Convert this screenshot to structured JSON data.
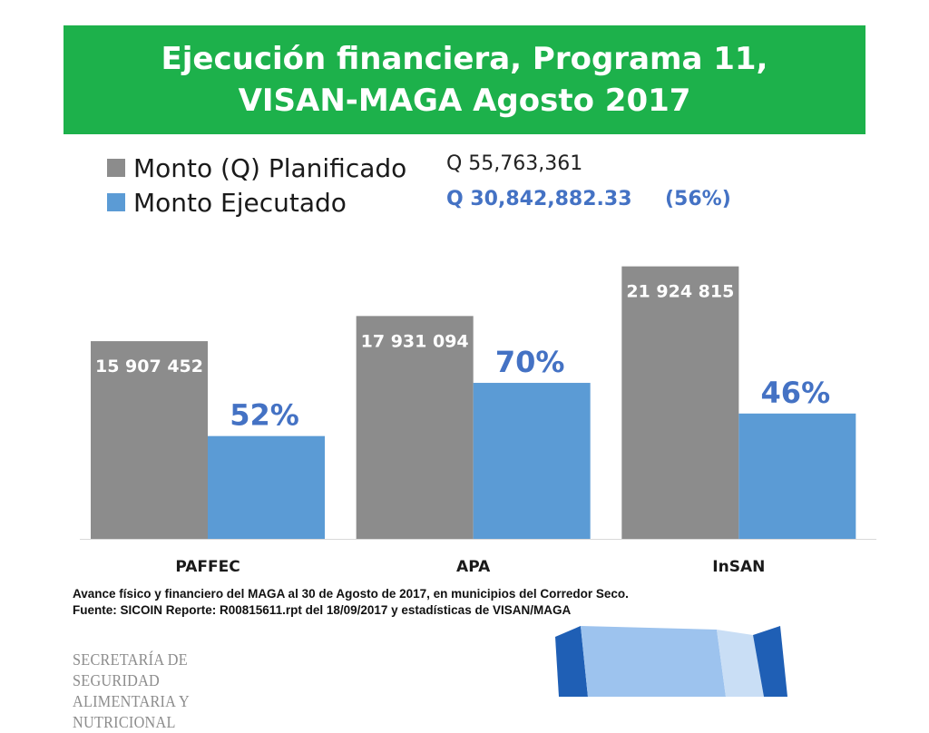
{
  "title": {
    "line1": "Ejecución financiera, Programa 11,",
    "line2": "VISAN-MAGA  Agosto 2017"
  },
  "colors": {
    "banner": "#1db14b",
    "planned": "#8c8c8c",
    "executed": "#5b9bd5",
    "executed_text": "#4472c4"
  },
  "legend": {
    "planned_label": "Monto (Q)  Planificado",
    "executed_label": "Monto Ejecutado"
  },
  "totals": {
    "planned": "Q 55,763,361",
    "executed": "Q 30,842,882.33",
    "executed_pct": "(56%)"
  },
  "chart_data": {
    "type": "bar",
    "categories": [
      "PAFFEC",
      "APA",
      "InSAN"
    ],
    "series": [
      {
        "name": "Monto (Q)  Planificado",
        "values": [
          15907452,
          17931094,
          21924815
        ],
        "labels": [
          "15 907 452",
          "17 931 094",
          "21 924 815"
        ]
      },
      {
        "name": "Monto Ejecutado",
        "values": [
          8271875,
          12551766,
          10085415
        ],
        "labels": [
          "52%",
          "70%",
          "46%"
        ]
      }
    ],
    "ylim": [
      0,
      25000000
    ],
    "grid": false,
    "legend_position": "top-left"
  },
  "footnote": {
    "line1": "Avance físico y financiero del MAGA al 30 de Agosto de 2017, en municipios del Corredor Seco.",
    "line2": "Fuente: SICOIN Reporte: R00815611.rpt del 18/09/2017 y estadísticas de VISAN/MAGA"
  },
  "logo": {
    "line1": "SECRETARÍA DE SEGURIDAD",
    "line2": "ALIMENTARIA Y NUTRICIONAL"
  }
}
